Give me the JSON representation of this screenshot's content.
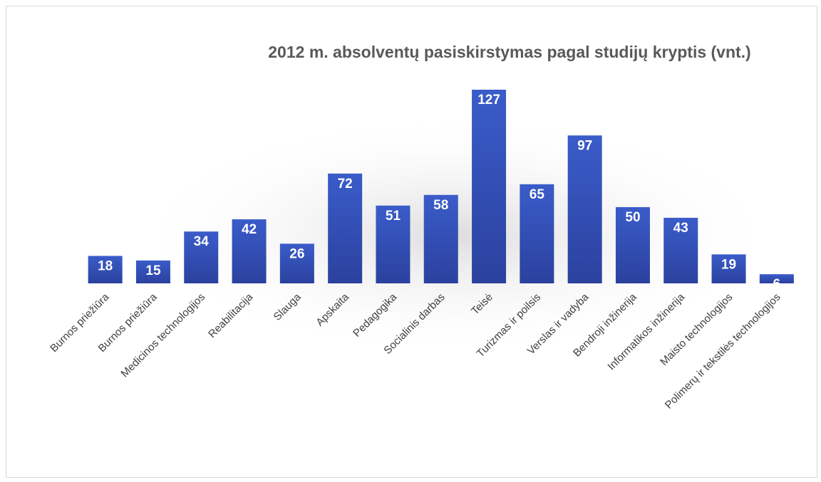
{
  "chart_data": {
    "type": "bar",
    "title": "2012 m. absolventų pasiskirstymas pagal studijų kryptis (vnt.)",
    "categories": [
      "Burnos priežiūra",
      "Burnos priežiūra",
      "Medicinos technologijos",
      "Reabilitacija",
      "Slauga",
      "Apskaita",
      "Pedagogika",
      "Socialinis darbas",
      "Teisė",
      "Turizmas ir poilsis",
      "Verslas ir vadyba",
      "Bendroji inžinerija",
      "Informatikos inžinerija",
      "Maisto technologijos",
      "Polimerų ir tekstilės technologijos"
    ],
    "values": [
      18,
      15,
      34,
      42,
      26,
      72,
      51,
      58,
      127,
      65,
      97,
      50,
      43,
      19,
      6
    ],
    "color": "#3352b8"
  }
}
